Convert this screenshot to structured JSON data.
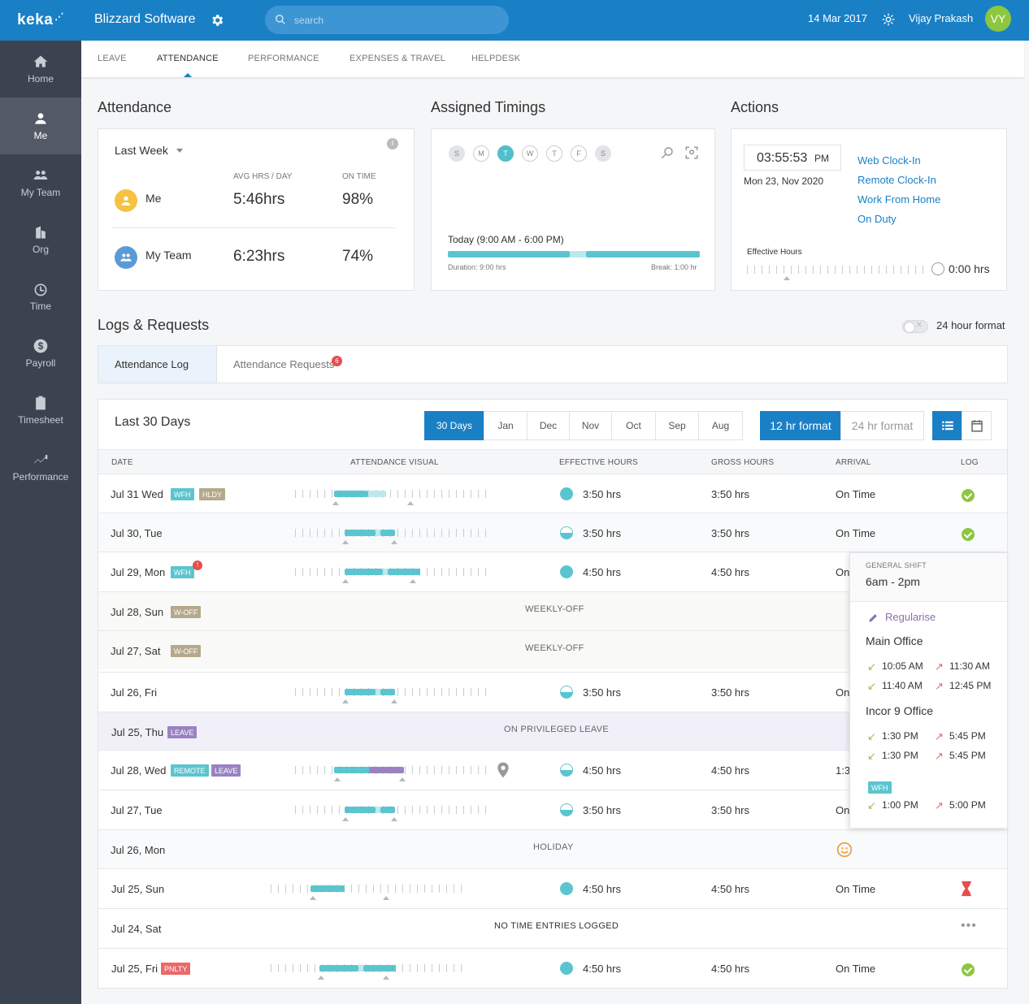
{
  "brand": {
    "logo": "keka",
    "company": "Blizzard Software"
  },
  "header": {
    "search_placeholder": "search",
    "date": "14 Mar 2017",
    "user_name": "Vijay Prakash",
    "user_initials": "VY"
  },
  "sidebar": {
    "items": [
      {
        "label": "Home",
        "icon": "home-icon"
      },
      {
        "label": "Me",
        "icon": "person-icon"
      },
      {
        "label": "My Team",
        "icon": "team-icon"
      },
      {
        "label": "Org",
        "icon": "building-icon"
      },
      {
        "label": "Time",
        "icon": "clock-icon"
      },
      {
        "label": "Payroll",
        "icon": "dollar-icon"
      },
      {
        "label": "Timesheet",
        "icon": "clipboard-icon"
      },
      {
        "label": "Performance",
        "icon": "trend-icon"
      }
    ]
  },
  "tabs": [
    "LEAVE",
    "ATTENDANCE",
    "PERFORMANCE",
    "EXPENSES & TRAVEL",
    "HELPDESK"
  ],
  "attendance": {
    "title": "Attendance",
    "period": "Last Week",
    "col_avg": "AVG HRS / DAY",
    "col_ontime": "ON TIME",
    "me": {
      "label": "Me",
      "avg": "5:46hrs",
      "ontime": "98%"
    },
    "team": {
      "label": "My Team",
      "avg": "6:23hrs",
      "ontime": "74%"
    }
  },
  "timings": {
    "title": "Assigned Timings",
    "days": [
      "S",
      "M",
      "T",
      "W",
      "T",
      "F",
      "S"
    ],
    "today": "Today (9:00 AM - 6:00 PM)",
    "duration": "Duration: 9:00 hrs",
    "break": "Break: 1:00 hr"
  },
  "actions": {
    "title": "Actions",
    "clock_time": "03:55:53",
    "clock_ampm": "PM",
    "clock_date": "Mon 23, Nov 2020",
    "links": [
      "Web Clock-In",
      "Remote Clock-In",
      "Work From Home",
      "On Duty"
    ],
    "effective_label": "Effective Hours",
    "effective_value": "0:00 hrs"
  },
  "logs": {
    "title": "Logs & Requests",
    "toggle_label": "24 hour format",
    "tab_log": "Attendance Log",
    "tab_requests": "Attendance Requests",
    "requests_count": "6",
    "range_title": "Last 30 Days",
    "months": [
      "30 Days",
      "Jan",
      "Dec",
      "Nov",
      "Oct",
      "Sep",
      "Aug"
    ],
    "fmt12": "12 hr format",
    "fmt24": "24 hr format",
    "headers": {
      "date": "DATE",
      "visual": "ATTENDANCE VISUAL",
      "effective": "EFFECTIVE HOURS",
      "gross": "GROSS HOURS",
      "arrival": "ARRIVAL",
      "log": "LOG"
    },
    "rows": [
      {
        "date": "Jul 31 Wed",
        "badges": [
          "WFH",
          "HLDY"
        ],
        "effective": "3:50 hrs",
        "gross": "3:50 hrs",
        "arrival": "On Time"
      },
      {
        "date": "Jul 30, Tue",
        "effective": "3:50 hrs",
        "gross": "3:50 hrs",
        "arrival": "On Time"
      },
      {
        "date": "Jul 29, Mon",
        "badges": [
          "WFH"
        ],
        "alert": "!",
        "effective": "4:50 hrs",
        "gross": "4:50 hrs",
        "arrival": "On"
      },
      {
        "date": "Jul 28, Sun",
        "badges": [
          "W-OFF"
        ],
        "label": "WEEKLY-OFF"
      },
      {
        "date": "Jul 27, Sat",
        "badges": [
          "W-OFF"
        ],
        "label": "WEEKLY-OFF"
      },
      {
        "date": "Jul 26, Fri",
        "effective": "3:50 hrs",
        "gross": "3:50 hrs",
        "arrival": "On"
      },
      {
        "date": "Jul 25, Thu",
        "badges": [
          "LEAVE"
        ],
        "label": "ON PRIVILEGED LEAVE"
      },
      {
        "date": "Jul 28, Wed",
        "badges": [
          "REMOTE",
          "LEAVE"
        ],
        "effective": "4:50 hrs",
        "gross": "4:50 hrs",
        "arrival": "1:3"
      },
      {
        "date": "Jul 27, Tue",
        "effective": "3:50 hrs",
        "gross": "3:50 hrs",
        "arrival": "On"
      },
      {
        "date": "Jul 26, Mon",
        "label": "HOLIDAY"
      },
      {
        "date": "Jul 25, Sun",
        "effective": "4:50 hrs",
        "gross": "4:50 hrs",
        "arrival": "On Time"
      },
      {
        "date": "Jul 24, Sat",
        "label": "NO TIME ENTRIES LOGGED"
      },
      {
        "date": "Jul 25, Fri",
        "badges": [
          "PNLTY"
        ],
        "effective": "4:50 hrs",
        "gross": "4:50 hrs",
        "arrival": "On Time"
      }
    ]
  },
  "popup": {
    "shift_label": "GENERAL SHIFT",
    "shift_time": "6am - 2pm",
    "regularise": "Regularise",
    "groups": [
      {
        "name": "Main Office",
        "entries": [
          [
            "10:05 AM",
            "11:30 AM"
          ],
          [
            "11:40 AM",
            "12:45 PM"
          ]
        ]
      },
      {
        "name": "Incor 9 Office",
        "entries": [
          [
            "1:30 PM",
            "5:45 PM"
          ],
          [
            "1:30 PM",
            "5:45 PM"
          ]
        ]
      }
    ],
    "wfh_badge": "WFH",
    "wfh_entry": [
      "1:00 PM",
      "5:00 PM"
    ]
  }
}
